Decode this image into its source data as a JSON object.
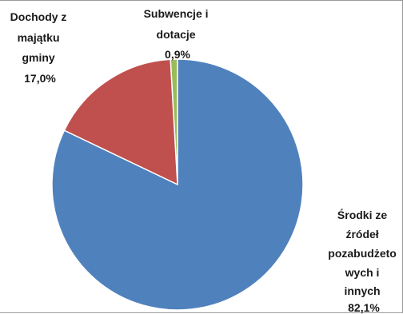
{
  "chart_data": {
    "type": "pie",
    "slices": [
      {
        "label_lines": [
          "Subwencje i",
          "dotacje"
        ],
        "value_label": "0,9%",
        "value": 0.9,
        "color": "#9BBB59"
      },
      {
        "label_lines": [
          "Dochody z",
          "majątku",
          "gminy"
        ],
        "value_label": "17,0%",
        "value": 17.0,
        "color": "#C0504D"
      },
      {
        "label_lines": [
          "Środki ze",
          "źródeł",
          "pozabudżeto",
          "wych i",
          "innych"
        ],
        "value_label": "82,1%",
        "value": 82.1,
        "color": "#4F81BD"
      }
    ],
    "start_angle_deg": 0,
    "direction": "counterclockwise",
    "slice_border_color": "#ffffff"
  }
}
